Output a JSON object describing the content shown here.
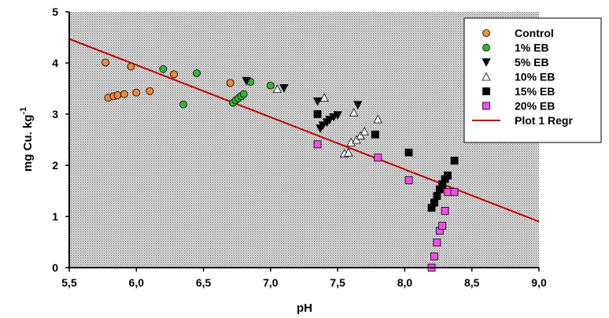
{
  "chart_data": {
    "type": "scatter",
    "xlabel": "pH",
    "ylabel": "mg Cu. kg",
    "ylabel_superscript": "-1",
    "xlim": [
      5.5,
      9.0
    ],
    "ylim": [
      0,
      5
    ],
    "x_ticks": [
      "5,5",
      "6,0",
      "6,5",
      "7,0",
      "7,5",
      "8,0",
      "8,5",
      "9,0"
    ],
    "y_ticks": [
      "0",
      "1",
      "2",
      "3",
      "4",
      "5"
    ],
    "grid": false,
    "legend_position": "top-right",
    "series": [
      {
        "name": "Control",
        "marker": "circle",
        "color": "#F5883A",
        "x": [
          5.77,
          5.79,
          5.83,
          5.86,
          5.91,
          5.96,
          6.0,
          6.1,
          6.28,
          6.7
        ],
        "y": [
          4.01,
          3.32,
          3.35,
          3.37,
          3.39,
          3.93,
          3.42,
          3.45,
          3.78,
          3.61
        ]
      },
      {
        "name": "1% EB",
        "marker": "circle",
        "color": "#33B533",
        "x": [
          6.2,
          6.35,
          6.45,
          6.72,
          6.74,
          6.76,
          6.78,
          6.8,
          6.85,
          7.0
        ],
        "y": [
          3.88,
          3.19,
          3.8,
          3.22,
          3.27,
          3.31,
          3.35,
          3.39,
          3.63,
          3.56
        ]
      },
      {
        "name": "5% EB",
        "marker": "triangle-down",
        "color": "#000000",
        "x": [
          6.82,
          7.1,
          7.35,
          7.37,
          7.39,
          7.42,
          7.44,
          7.47,
          7.5,
          7.65
        ],
        "y": [
          3.65,
          3.51,
          3.25,
          2.72,
          2.78,
          2.84,
          2.89,
          2.94,
          2.98,
          3.18
        ]
      },
      {
        "name": "10% EB",
        "marker": "triangle-up",
        "color": "#FFFFFF",
        "x": [
          7.05,
          7.4,
          7.55,
          7.58,
          7.6,
          7.62,
          7.64,
          7.67,
          7.7,
          7.8
        ],
        "y": [
          3.49,
          3.32,
          2.23,
          2.25,
          2.45,
          3.03,
          2.5,
          2.58,
          2.66,
          2.9
        ]
      },
      {
        "name": "15% EB",
        "marker": "square",
        "color": "#000000",
        "x": [
          7.35,
          7.78,
          8.03,
          8.2,
          8.22,
          8.24,
          8.26,
          8.28,
          8.3,
          8.32,
          8.37
        ],
        "y": [
          3.0,
          2.6,
          2.25,
          1.17,
          1.27,
          1.4,
          1.53,
          1.63,
          1.73,
          1.8,
          2.09
        ]
      },
      {
        "name": "20% EB",
        "marker": "square",
        "color": "#F04FEA",
        "x": [
          7.35,
          7.8,
          8.03,
          8.2,
          8.22,
          8.24,
          8.26,
          8.28,
          8.3,
          8.32,
          8.37
        ],
        "y": [
          2.41,
          2.15,
          1.71,
          0.0,
          0.22,
          0.49,
          0.72,
          0.82,
          1.11,
          1.48,
          1.48
        ]
      },
      {
        "name": "Plot 1 Regr",
        "marker": "line",
        "color": "#C00000",
        "x": [
          5.5,
          9.0
        ],
        "y": [
          4.47,
          0.9
        ]
      }
    ]
  }
}
